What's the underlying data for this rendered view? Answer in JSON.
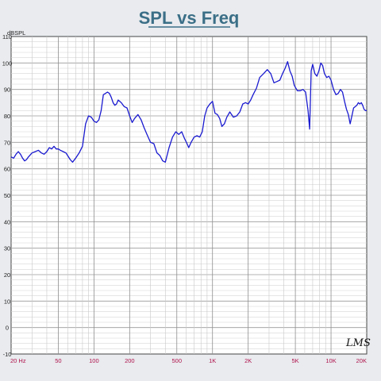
{
  "chart_data": {
    "type": "line",
    "title": "SPL vs Freq",
    "ylabel": "dBSPL",
    "xlabel": "",
    "x_scale": "log",
    "xlim": [
      20,
      20000
    ],
    "ylim": [
      -10,
      110
    ],
    "grid": true,
    "logo_text": "LMS",
    "y_ticks": [
      -10,
      0,
      10,
      20,
      30,
      40,
      50,
      60,
      70,
      80,
      90,
      100,
      110
    ],
    "x_ticks": [
      {
        "value": 20,
        "label": "20 Hz"
      },
      {
        "value": 50,
        "label": "50"
      },
      {
        "value": 100,
        "label": "100"
      },
      {
        "value": 200,
        "label": "200"
      },
      {
        "value": 500,
        "label": "500"
      },
      {
        "value": 1000,
        "label": "1K"
      },
      {
        "value": 2000,
        "label": "2K"
      },
      {
        "value": 5000,
        "label": "5K"
      },
      {
        "value": 10000,
        "label": "10K"
      },
      {
        "value": 20000,
        "label": "20K"
      }
    ],
    "series": [
      {
        "color": "#1a1ad0",
        "points": [
          [
            20,
            64.5
          ],
          [
            21,
            64.0
          ],
          [
            22,
            65.5
          ],
          [
            23,
            66.5
          ],
          [
            24,
            65.5
          ],
          [
            25,
            64.0
          ],
          [
            26,
            63.0
          ],
          [
            27,
            63.5
          ],
          [
            28,
            64.5
          ],
          [
            30,
            66.0
          ],
          [
            32,
            66.5
          ],
          [
            34,
            67.0
          ],
          [
            36,
            66.0
          ],
          [
            38,
            65.5
          ],
          [
            40,
            66.5
          ],
          [
            42,
            68.0
          ],
          [
            44,
            67.5
          ],
          [
            46,
            68.5
          ],
          [
            48,
            67.5
          ],
          [
            50,
            67.5
          ],
          [
            52,
            67.0
          ],
          [
            55,
            66.5
          ],
          [
            58,
            66.0
          ],
          [
            60,
            65.0
          ],
          [
            63,
            63.5
          ],
          [
            66,
            62.5
          ],
          [
            70,
            64.0
          ],
          [
            75,
            66.0
          ],
          [
            80,
            68.5
          ],
          [
            85,
            77.0
          ],
          [
            90,
            80.0
          ],
          [
            95,
            79.5
          ],
          [
            100,
            78.0
          ],
          [
            105,
            77.5
          ],
          [
            110,
            78.5
          ],
          [
            115,
            82.0
          ],
          [
            120,
            88.0
          ],
          [
            125,
            88.5
          ],
          [
            130,
            89.0
          ],
          [
            135,
            88.5
          ],
          [
            140,
            87.0
          ],
          [
            145,
            85.0
          ],
          [
            150,
            84.0
          ],
          [
            155,
            84.5
          ],
          [
            160,
            86.0
          ],
          [
            170,
            85.0
          ],
          [
            180,
            83.5
          ],
          [
            190,
            83.0
          ],
          [
            200,
            80.0
          ],
          [
            210,
            77.5
          ],
          [
            220,
            79.0
          ],
          [
            235,
            80.5
          ],
          [
            250,
            78.5
          ],
          [
            265,
            75.5
          ],
          [
            280,
            73.0
          ],
          [
            300,
            70.0
          ],
          [
            320,
            69.5
          ],
          [
            340,
            66.0
          ],
          [
            360,
            65.0
          ],
          [
            380,
            63.0
          ],
          [
            400,
            62.5
          ],
          [
            430,
            68.0
          ],
          [
            460,
            72.0
          ],
          [
            490,
            74.0
          ],
          [
            520,
            73.0
          ],
          [
            550,
            74.0
          ],
          [
            580,
            71.5
          ],
          [
            610,
            69.5
          ],
          [
            630,
            68.0
          ],
          [
            660,
            70.0
          ],
          [
            700,
            72.0
          ],
          [
            740,
            72.5
          ],
          [
            780,
            72.0
          ],
          [
            820,
            74.0
          ],
          [
            860,
            80.0
          ],
          [
            900,
            83.0
          ],
          [
            950,
            84.5
          ],
          [
            1000,
            85.5
          ],
          [
            1050,
            81.0
          ],
          [
            1100,
            80.5
          ],
          [
            1150,
            79.0
          ],
          [
            1200,
            76.0
          ],
          [
            1260,
            77.0
          ],
          [
            1320,
            79.5
          ],
          [
            1400,
            81.5
          ],
          [
            1450,
            80.5
          ],
          [
            1500,
            79.5
          ],
          [
            1600,
            80.0
          ],
          [
            1700,
            81.5
          ],
          [
            1800,
            84.5
          ],
          [
            1900,
            85.0
          ],
          [
            2000,
            84.5
          ],
          [
            2100,
            86.0
          ],
          [
            2200,
            88.0
          ],
          [
            2350,
            90.5
          ],
          [
            2500,
            94.5
          ],
          [
            2700,
            96.0
          ],
          [
            2900,
            97.5
          ],
          [
            3100,
            96.0
          ],
          [
            3300,
            92.5
          ],
          [
            3500,
            93.0
          ],
          [
            3700,
            93.5
          ],
          [
            3900,
            96.0
          ],
          [
            4100,
            98.0
          ],
          [
            4300,
            100.5
          ],
          [
            4500,
            97.0
          ],
          [
            4700,
            95.0
          ],
          [
            4900,
            91.5
          ],
          [
            5200,
            89.5
          ],
          [
            5500,
            89.5
          ],
          [
            5800,
            90.0
          ],
          [
            6100,
            89.0
          ],
          [
            6400,
            82.0
          ],
          [
            6600,
            75.0
          ],
          [
            6800,
            97.0
          ],
          [
            7000,
            99.5
          ],
          [
            7300,
            96.0
          ],
          [
            7600,
            95.0
          ],
          [
            7900,
            97.0
          ],
          [
            8200,
            100.0
          ],
          [
            8500,
            99.0
          ],
          [
            8800,
            96.0
          ],
          [
            9200,
            94.5
          ],
          [
            9600,
            95.0
          ],
          [
            10000,
            93.5
          ],
          [
            10500,
            90.0
          ],
          [
            11000,
            88.0
          ],
          [
            11500,
            88.5
          ],
          [
            12000,
            90.0
          ],
          [
            12500,
            89.0
          ],
          [
            13000,
            85.5
          ],
          [
            13500,
            82.5
          ],
          [
            14000,
            80.5
          ],
          [
            14500,
            77.0
          ],
          [
            15000,
            80.0
          ],
          [
            15500,
            83.0
          ],
          [
            16000,
            83.5
          ],
          [
            16500,
            84.0
          ],
          [
            17000,
            85.0
          ],
          [
            17500,
            84.5
          ],
          [
            18000,
            85.0
          ],
          [
            18500,
            84.0
          ],
          [
            19000,
            82.5
          ],
          [
            19500,
            82.0
          ],
          [
            20000,
            82.0
          ]
        ]
      }
    ]
  }
}
